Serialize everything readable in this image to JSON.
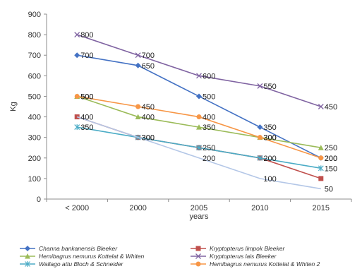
{
  "chart_data": {
    "type": "line",
    "title": "",
    "xlabel": "years",
    "ylabel": "Kg",
    "categories": [
      "< 2000",
      "2000",
      "2005",
      "2010",
      "2015"
    ],
    "ylim": [
      0,
      900
    ],
    "yticks": [
      0,
      100,
      200,
      300,
      400,
      500,
      600,
      700,
      800,
      900
    ],
    "grid": false,
    "legend_position": "bottom",
    "series": [
      {
        "name": "Channa bankanensis Bleeker",
        "values": [
          700,
          650,
          500,
          350,
          200
        ],
        "color": "#4472C4",
        "marker": "diamond",
        "labels": true
      },
      {
        "name": "Kryptopterus limpok Bleeker",
        "values": [
          400,
          300,
          250,
          200,
          100
        ],
        "color": "#C0504D",
        "marker": "square",
        "labels": false
      },
      {
        "name": "Hemibagrus nemurus Kottelat & Whiten",
        "values": [
          500,
          400,
          350,
          300,
          250
        ],
        "color": "#9BBB59",
        "marker": "triangle",
        "labels": true
      },
      {
        "name": "Kryptopterus lais Bleeker",
        "values": [
          800,
          700,
          600,
          550,
          450
        ],
        "color": "#8064A2",
        "marker": "x",
        "labels": true
      },
      {
        "name": "Wallago attu Bloch & Schneider",
        "values": [
          350,
          300,
          250,
          200,
          150
        ],
        "color": "#4BACC6",
        "marker": "star",
        "labels": true
      },
      {
        "name": "Hemibagrus nemurus Kottelat & Whiten 2",
        "values": [
          500,
          450,
          400,
          300,
          200
        ],
        "color": "#F79646",
        "marker": "circle",
        "labels": true
      },
      {
        "name": "",
        "values": [
          400,
          300,
          200,
          100,
          50
        ],
        "color": "#B4C7E7",
        "marker": "none",
        "labels": true
      }
    ]
  }
}
